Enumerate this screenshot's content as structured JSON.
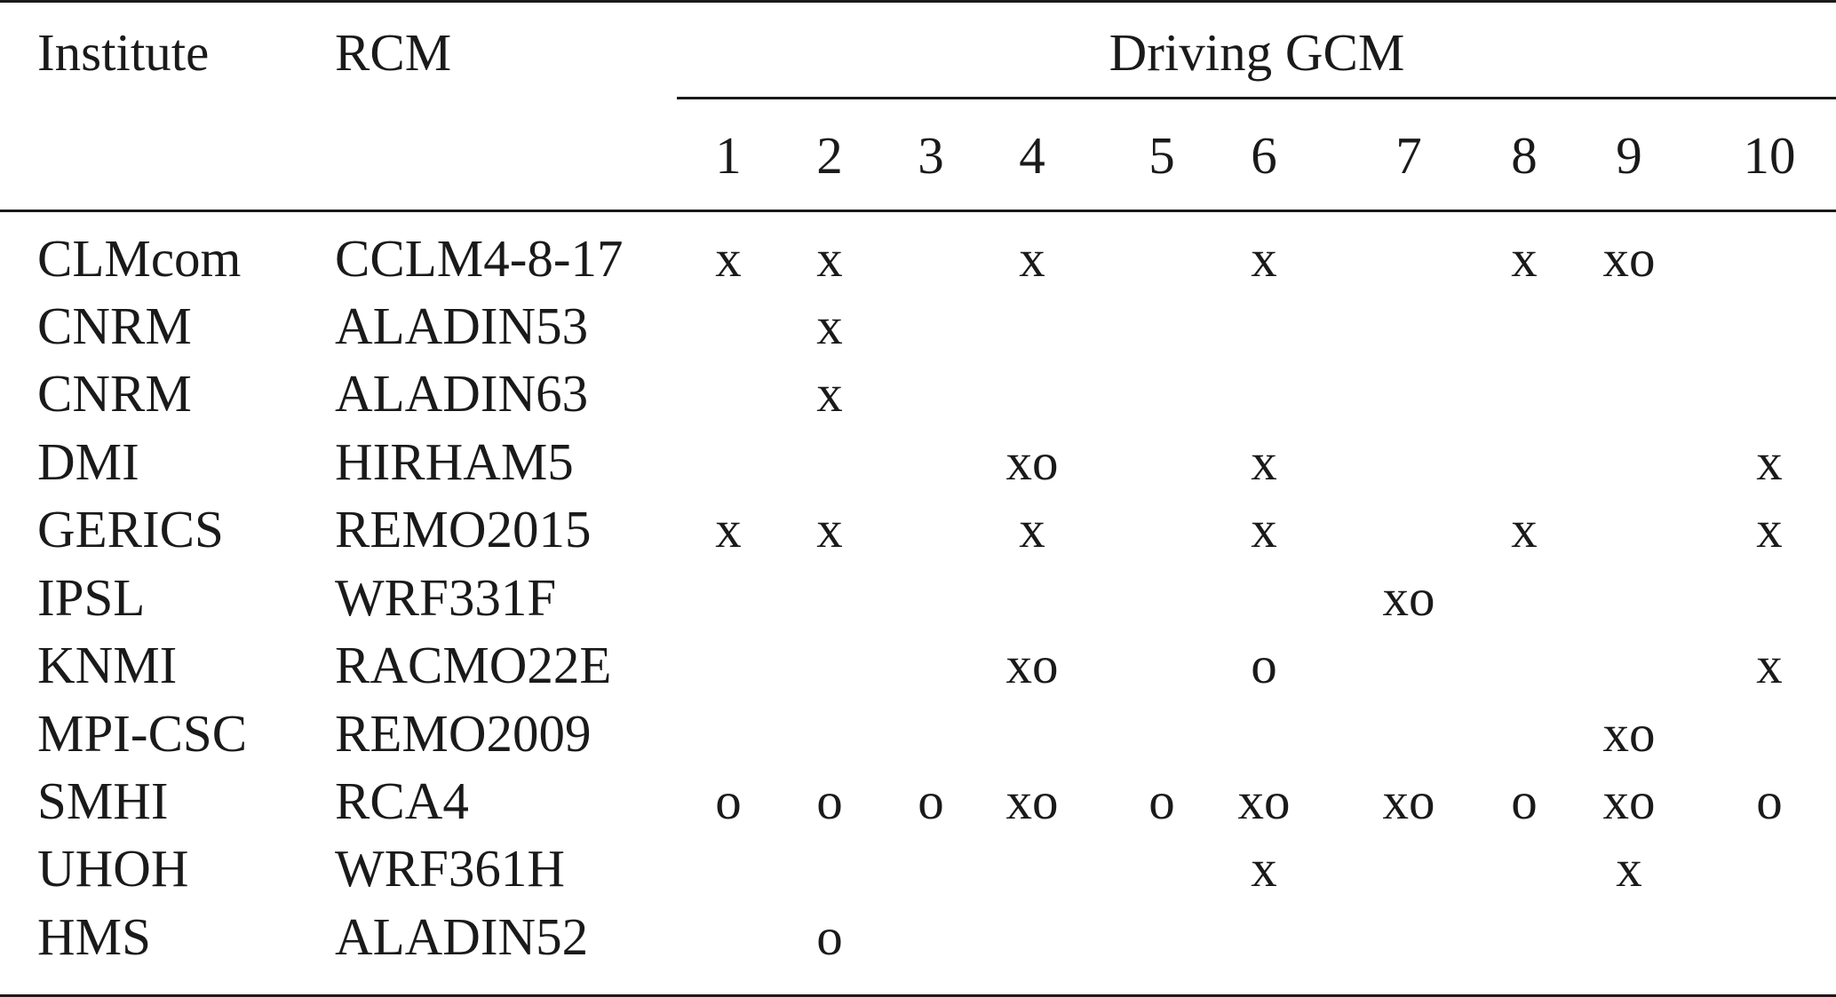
{
  "table": {
    "headers": {
      "institute": "Institute",
      "rcm": "RCM",
      "driving_gcm": "Driving GCM",
      "gcm_numbers": [
        "1",
        "2",
        "3",
        "4",
        "5",
        "6",
        "7",
        "8",
        "9",
        "10"
      ]
    },
    "rows": [
      {
        "institute": "CLMcom",
        "rcm": "CCLM4-8-17",
        "cells": [
          "x",
          "x",
          "",
          "x",
          "",
          "x",
          "",
          "x",
          "xo",
          ""
        ]
      },
      {
        "institute": "CNRM",
        "rcm": "ALADIN53",
        "cells": [
          "",
          "x",
          "",
          "",
          "",
          "",
          "",
          "",
          "",
          ""
        ]
      },
      {
        "institute": "CNRM",
        "rcm": "ALADIN63",
        "cells": [
          "",
          "x",
          "",
          "",
          "",
          "",
          "",
          "",
          "",
          ""
        ]
      },
      {
        "institute": "DMI",
        "rcm": "HIRHAM5",
        "cells": [
          "",
          "",
          "",
          "xo",
          "",
          "x",
          "",
          "",
          "",
          "x"
        ]
      },
      {
        "institute": "GERICS",
        "rcm": "REMO2015",
        "cells": [
          "x",
          "x",
          "",
          "x",
          "",
          "x",
          "",
          "x",
          "",
          "x"
        ]
      },
      {
        "institute": "IPSL",
        "rcm": "WRF331F",
        "cells": [
          "",
          "",
          "",
          "",
          "",
          "",
          "xo",
          "",
          "",
          ""
        ]
      },
      {
        "institute": "KNMI",
        "rcm": "RACMO22E",
        "cells": [
          "",
          "",
          "",
          "xo",
          "",
          "o",
          "",
          "",
          "",
          "x"
        ]
      },
      {
        "institute": "MPI-CSC",
        "rcm": "REMO2009",
        "cells": [
          "",
          "",
          "",
          "",
          "",
          "",
          "",
          "",
          "xo",
          ""
        ]
      },
      {
        "institute": "SMHI",
        "rcm": "RCA4",
        "cells": [
          "o",
          "o",
          "o",
          "xo",
          "o",
          "xo",
          "xo",
          "o",
          "xo",
          "o"
        ]
      },
      {
        "institute": "UHOH",
        "rcm": "WRF361H",
        "cells": [
          "",
          "",
          "",
          "",
          "",
          "x",
          "",
          "",
          "x",
          ""
        ]
      },
      {
        "institute": "HMS",
        "rcm": "ALADIN52",
        "cells": [
          "",
          "o",
          "",
          "",
          "",
          "",
          "",
          "",
          "",
          ""
        ]
      }
    ]
  }
}
